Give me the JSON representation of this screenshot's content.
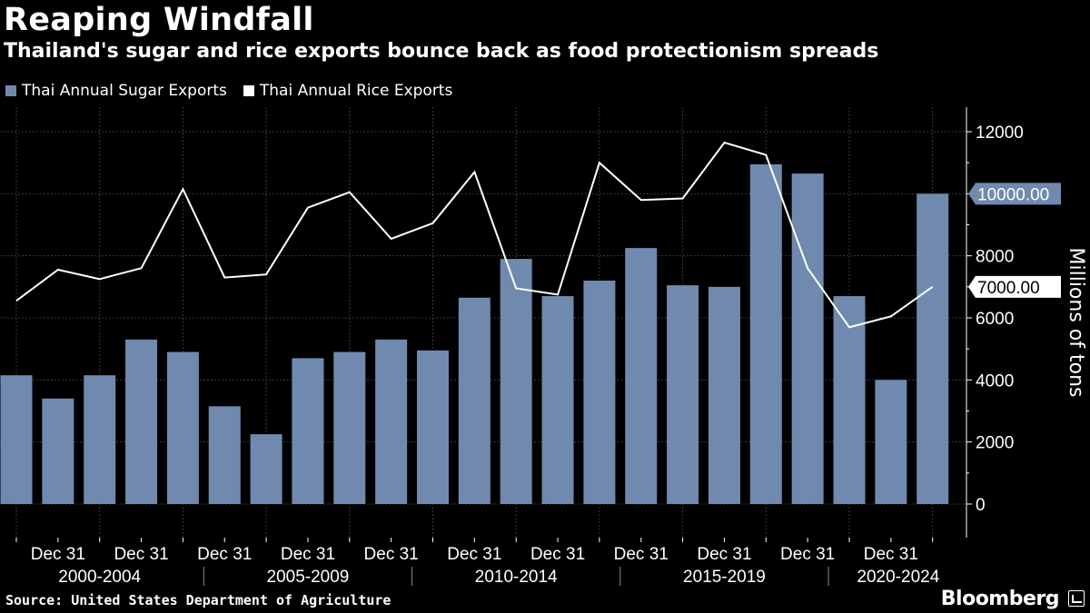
{
  "header": {
    "title": "Reaping Windfall",
    "subtitle": "Thailand's sugar and rice exports bounce back as food protectionism spreads"
  },
  "footer": {
    "source": "Source: United States Department of Agriculture",
    "brand": "Bloomberg"
  },
  "colors": {
    "sugar": "#7089AF",
    "rice": "#FFFFFF",
    "grid": "#3a3a3a",
    "background": "#000000"
  },
  "chart_data": {
    "type": "bar",
    "title": "Reaping Windfall",
    "ylabel": "Millions of tons",
    "ylim": [
      -1000,
      12600
    ],
    "yticks": [
      0,
      2000,
      4000,
      6000,
      8000,
      10000,
      12000
    ],
    "categories": [
      "2000",
      "2001",
      "2002",
      "2003",
      "2004",
      "2005",
      "2006",
      "2007",
      "2008",
      "2009",
      "2010",
      "2011",
      "2012",
      "2013",
      "2014",
      "2015",
      "2016",
      "2017",
      "2018",
      "2019",
      "2020",
      "2021",
      "2022"
    ],
    "tick_labels": [
      "Dec 31",
      "Dec 31",
      "Dec 31",
      "Dec 31",
      "Dec 31",
      "Dec 31",
      "Dec 31",
      "Dec 31",
      "Dec 31",
      "Dec 31",
      "Dec 31"
    ],
    "group_labels": [
      "2000-2004",
      "2005-2009",
      "2010-2014",
      "2015-2019",
      "2020-2024"
    ],
    "series": [
      {
        "name": "Thai Annual Sugar Exports",
        "type": "bar",
        "values": [
          4150,
          3400,
          4150,
          5300,
          4900,
          3150,
          2250,
          4700,
          4900,
          5300,
          4950,
          6650,
          7900,
          6700,
          7200,
          8250,
          7050,
          7000,
          10950,
          10650,
          6700,
          4000,
          10000
        ]
      },
      {
        "name": "Thai Annual Rice Exports",
        "type": "line",
        "values": [
          6550,
          7550,
          7250,
          7600,
          10150,
          7300,
          7400,
          9550,
          10050,
          8550,
          9050,
          10700,
          6950,
          6750,
          11000,
          9800,
          9850,
          11650,
          11250,
          7600,
          5700,
          6050,
          7000
        ]
      }
    ],
    "last_value_labels": [
      "10000.00",
      "7000.00"
    ]
  }
}
